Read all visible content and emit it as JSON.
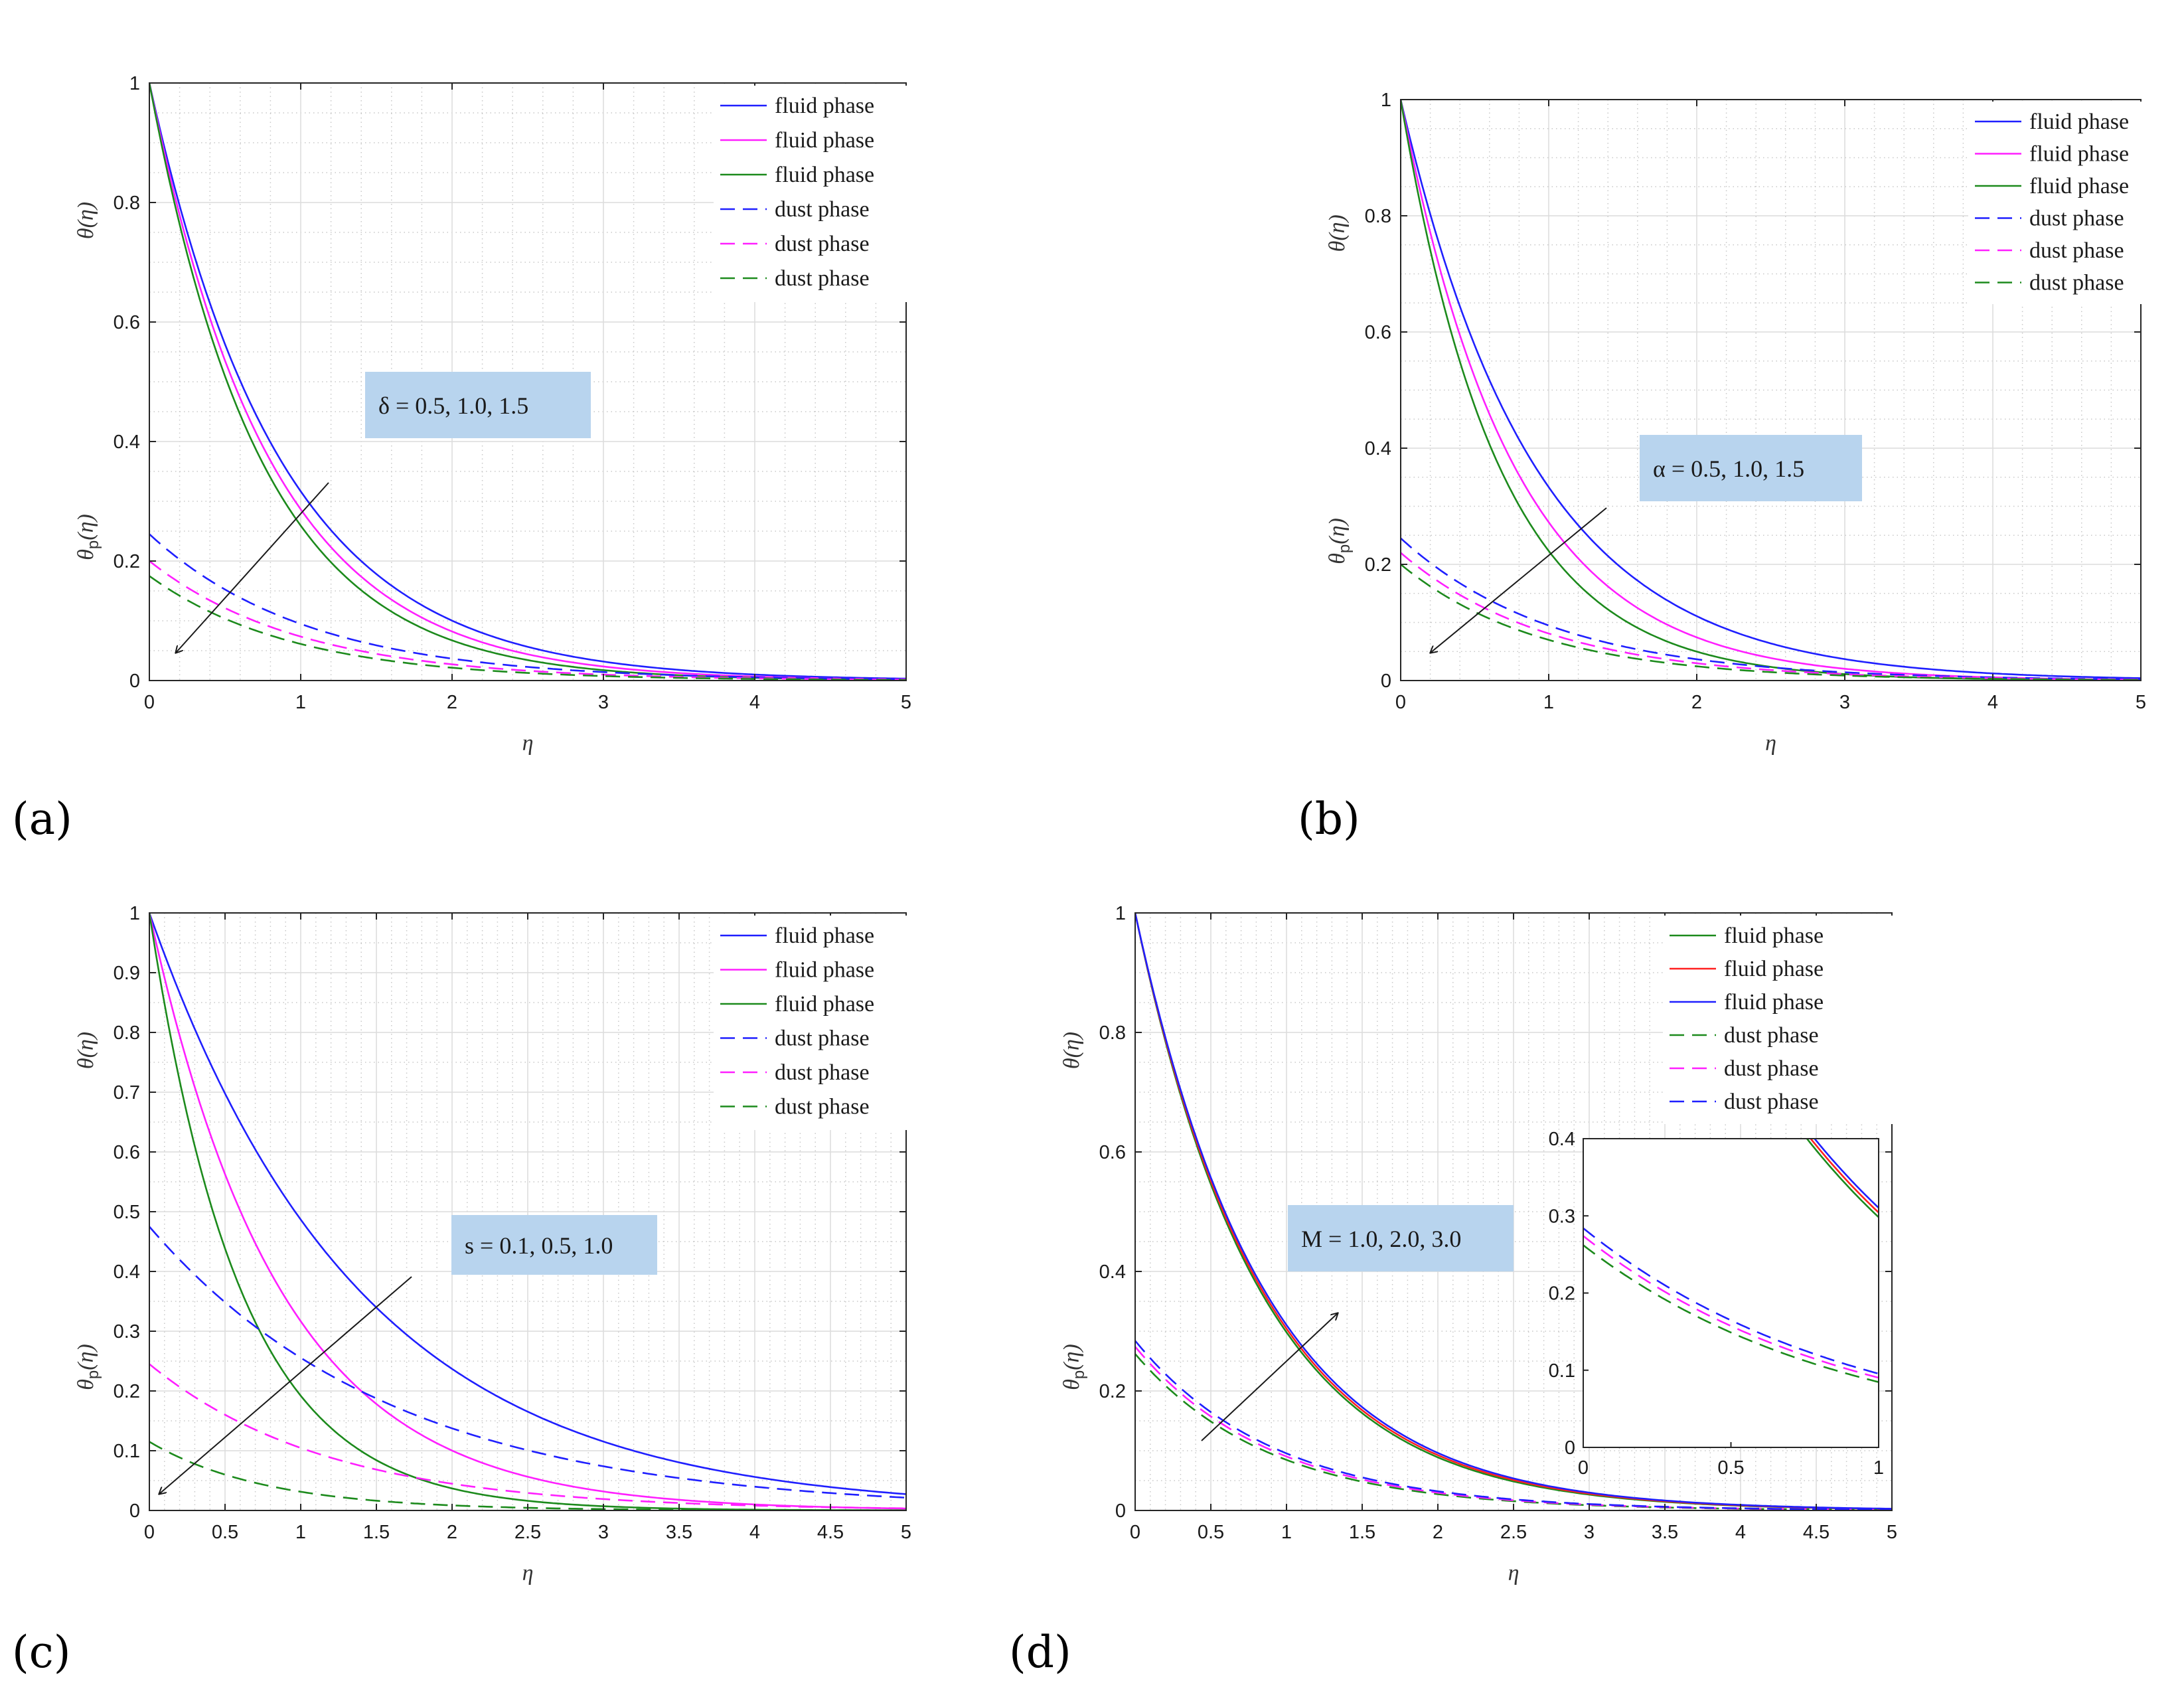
{
  "colors": {
    "blue": "#1f1fff",
    "magenta": "#ff1fff",
    "green": "#1c8a1c",
    "red": "#ff2020",
    "annotation_box": "#b8d4ee"
  },
  "chart_data": [
    {
      "panel": "(a)",
      "type": "line",
      "xlabel": "η",
      "ylabel_top": "θ(η)",
      "ylabel_bottom": "θ_p(η)",
      "xlim": [
        0,
        5
      ],
      "ylim": [
        0,
        1
      ],
      "xticks": [
        "0",
        "1",
        "2",
        "3",
        "4",
        "5"
      ],
      "yticks": [
        "0",
        "0.2",
        "0.4",
        "0.6",
        "0.8",
        "1"
      ],
      "legend_position": "top-right",
      "annotation": "δ = 0.5, 1.0, 1.5",
      "arrow_direction": "down-left",
      "series": [
        {
          "name": "fluid phase",
          "color": "blue",
          "style": "solid",
          "start": 1.0,
          "rate": 1.15
        },
        {
          "name": "fluid phase",
          "color": "magenta",
          "style": "solid",
          "start": 1.0,
          "rate": 1.25
        },
        {
          "name": "fluid phase",
          "color": "green",
          "style": "solid",
          "start": 1.0,
          "rate": 1.35
        },
        {
          "name": "dust phase",
          "color": "blue",
          "style": "dashed",
          "start": 0.245,
          "rate": 0.95
        },
        {
          "name": "dust phase",
          "color": "magenta",
          "style": "dashed",
          "start": 0.2,
          "rate": 1.0
        },
        {
          "name": "dust phase",
          "color": "green",
          "style": "dashed",
          "start": 0.175,
          "rate": 1.05
        }
      ]
    },
    {
      "panel": "(b)",
      "type": "line",
      "xlabel": "η",
      "ylabel_top": "θ(η)",
      "ylabel_bottom": "θ_p(η)",
      "xlim": [
        0,
        5
      ],
      "ylim": [
        0,
        1
      ],
      "xticks": [
        "0",
        "1",
        "2",
        "3",
        "4",
        "5"
      ],
      "yticks": [
        "0",
        "0.2",
        "0.4",
        "0.6",
        "0.8",
        "1"
      ],
      "legend_position": "top-right",
      "annotation": "α = 0.5, 1.0, 1.5",
      "arrow_direction": "down-left",
      "series": [
        {
          "name": "fluid phase",
          "color": "blue",
          "style": "solid",
          "start": 1.0,
          "rate": 1.1
        },
        {
          "name": "fluid phase",
          "color": "magenta",
          "style": "solid",
          "start": 1.0,
          "rate": 1.3
        },
        {
          "name": "fluid phase",
          "color": "green",
          "style": "solid",
          "start": 1.0,
          "rate": 1.5
        },
        {
          "name": "dust phase",
          "color": "blue",
          "style": "dashed",
          "start": 0.245,
          "rate": 0.95
        },
        {
          "name": "dust phase",
          "color": "magenta",
          "style": "dashed",
          "start": 0.22,
          "rate": 1.0
        },
        {
          "name": "dust phase",
          "color": "green",
          "style": "dashed",
          "start": 0.2,
          "rate": 1.05
        }
      ]
    },
    {
      "panel": "(c)",
      "type": "line",
      "xlabel": "η",
      "ylabel_top": "θ(η)",
      "ylabel_bottom": "θ_p(η)",
      "xlim": [
        0,
        5
      ],
      "ylim": [
        0,
        1
      ],
      "xticks": [
        "0",
        "0.5",
        "1",
        "1.5",
        "2",
        "2.5",
        "3",
        "3.5",
        "4",
        "4.5",
        "5"
      ],
      "yticks": [
        "0",
        "0.1",
        "0.2",
        "0.3",
        "0.4",
        "0.5",
        "0.6",
        "0.7",
        "0.8",
        "0.9",
        "1"
      ],
      "legend_position": "top-right",
      "annotation": "s = 0.1, 0.5, 1.0",
      "arrow_direction": "down-left",
      "series": [
        {
          "name": "fluid phase",
          "color": "blue",
          "style": "solid",
          "start": 1.0,
          "rate": 0.72
        },
        {
          "name": "fluid phase",
          "color": "magenta",
          "style": "solid",
          "start": 1.0,
          "rate": 1.15
        },
        {
          "name": "fluid phase",
          "color": "green",
          "style": "solid",
          "start": 1.0,
          "rate": 1.65
        },
        {
          "name": "dust phase",
          "color": "blue",
          "style": "dashed",
          "start": 0.475,
          "rate": 0.62
        },
        {
          "name": "dust phase",
          "color": "magenta",
          "style": "dashed",
          "start": 0.245,
          "rate": 0.85
        },
        {
          "name": "dust phase",
          "color": "green",
          "style": "dashed",
          "start": 0.115,
          "rate": 1.3
        }
      ]
    },
    {
      "panel": "(d)",
      "type": "line",
      "xlabel": "η",
      "ylabel_top": "θ(η)",
      "ylabel_bottom": "θ_p(η)",
      "xlim": [
        0,
        5
      ],
      "ylim": [
        0,
        1
      ],
      "xticks": [
        "0",
        "0.5",
        "1",
        "1.5",
        "2",
        "2.5",
        "3",
        "3.5",
        "4",
        "4.5",
        "5"
      ],
      "yticks": [
        "0",
        "0.2",
        "0.4",
        "0.6",
        "0.8",
        "1"
      ],
      "legend_position": "top-right",
      "annotation": "M = 1.0, 2.0, 3.0",
      "arrow_direction": "up-right",
      "series": [
        {
          "name": "fluid phase",
          "color": "green",
          "style": "solid",
          "start": 1.0,
          "rate": 1.21
        },
        {
          "name": "fluid phase",
          "color": "red",
          "style": "solid",
          "start": 1.0,
          "rate": 1.19
        },
        {
          "name": "fluid phase",
          "color": "blue",
          "style": "solid",
          "start": 1.0,
          "rate": 1.17
        },
        {
          "name": "dust phase",
          "color": "green",
          "style": "dashed",
          "start": 0.262,
          "rate": 1.13
        },
        {
          "name": "dust phase",
          "color": "magenta",
          "style": "dashed",
          "start": 0.274,
          "rate": 1.11
        },
        {
          "name": "dust phase",
          "color": "blue",
          "style": "dashed",
          "start": 0.284,
          "rate": 1.09
        }
      ],
      "inset": {
        "xlim": [
          0,
          1
        ],
        "ylim": [
          0,
          0.4
        ],
        "xticks": [
          "0",
          "0.5",
          "1"
        ],
        "yticks": [
          "0",
          "0.1",
          "0.2",
          "0.3",
          "0.4"
        ]
      }
    }
  ]
}
